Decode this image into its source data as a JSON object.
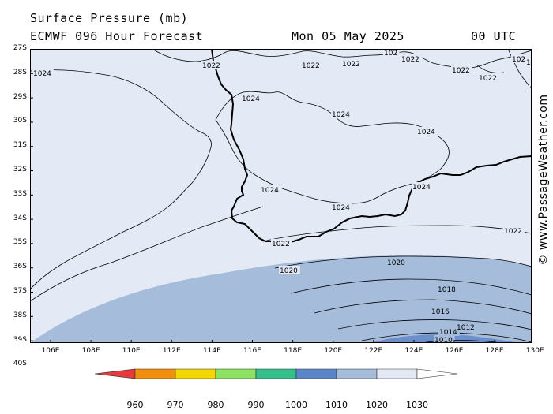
{
  "header": {
    "title": "Surface Pressure (mb)",
    "subtitle": "ECMWF 096 Hour Forecast",
    "date": "Mon 05 May 2025",
    "time": "00 UTC"
  },
  "map": {
    "lat_labels": [
      "27S",
      "28S",
      "29S",
      "30S",
      "31S",
      "32S",
      "33S",
      "34S",
      "35S",
      "36S",
      "37S",
      "38S",
      "39S",
      "40S"
    ],
    "lon_labels": [
      "106E",
      "108E",
      "110E",
      "112E",
      "114E",
      "116E",
      "118E",
      "120E",
      "122E",
      "124E",
      "126E",
      "128E",
      "130E"
    ],
    "lat_range": [
      -40,
      -27
    ],
    "lon_range": [
      105,
      130
    ],
    "colors": {
      "background": "#e3e9f5",
      "fill_1020": "#a6bcdb",
      "fill_1010": "#6a8fca",
      "isobar": "#000000",
      "coast": "#000000"
    },
    "isobar_labels": [
      {
        "text": "1024"
      },
      {
        "text": "1022"
      },
      {
        "text": "1022"
      },
      {
        "text": "1022"
      },
      {
        "text": "102"
      },
      {
        "text": "1022"
      },
      {
        "text": "1022"
      },
      {
        "text": "1022"
      },
      {
        "text": "102"
      },
      {
        "text": "1022"
      },
      {
        "text": "102"
      },
      {
        "text": "1024"
      },
      {
        "text": "1024"
      },
      {
        "text": "1024"
      },
      {
        "text": "1024"
      },
      {
        "text": "1024"
      },
      {
        "text": "1024"
      },
      {
        "text": "1022"
      },
      {
        "text": "1022"
      },
      {
        "text": "1020"
      },
      {
        "text": "1020"
      },
      {
        "text": "1018"
      },
      {
        "text": "1016"
      },
      {
        "text": "1014"
      },
      {
        "text": "1012"
      },
      {
        "text": "1010"
      }
    ]
  },
  "watermark": "© www.PassageWeather.com",
  "colorbar": {
    "labels": [
      "960",
      "970",
      "980",
      "990",
      "1000",
      "1010",
      "1020",
      "1030"
    ],
    "colors": [
      "#e8393c",
      "#f0900c",
      "#f5d700",
      "#8ce362",
      "#33c08a",
      "#5a86c8",
      "#a6bcdb",
      "#e3e9f5",
      "#ffffff"
    ]
  }
}
